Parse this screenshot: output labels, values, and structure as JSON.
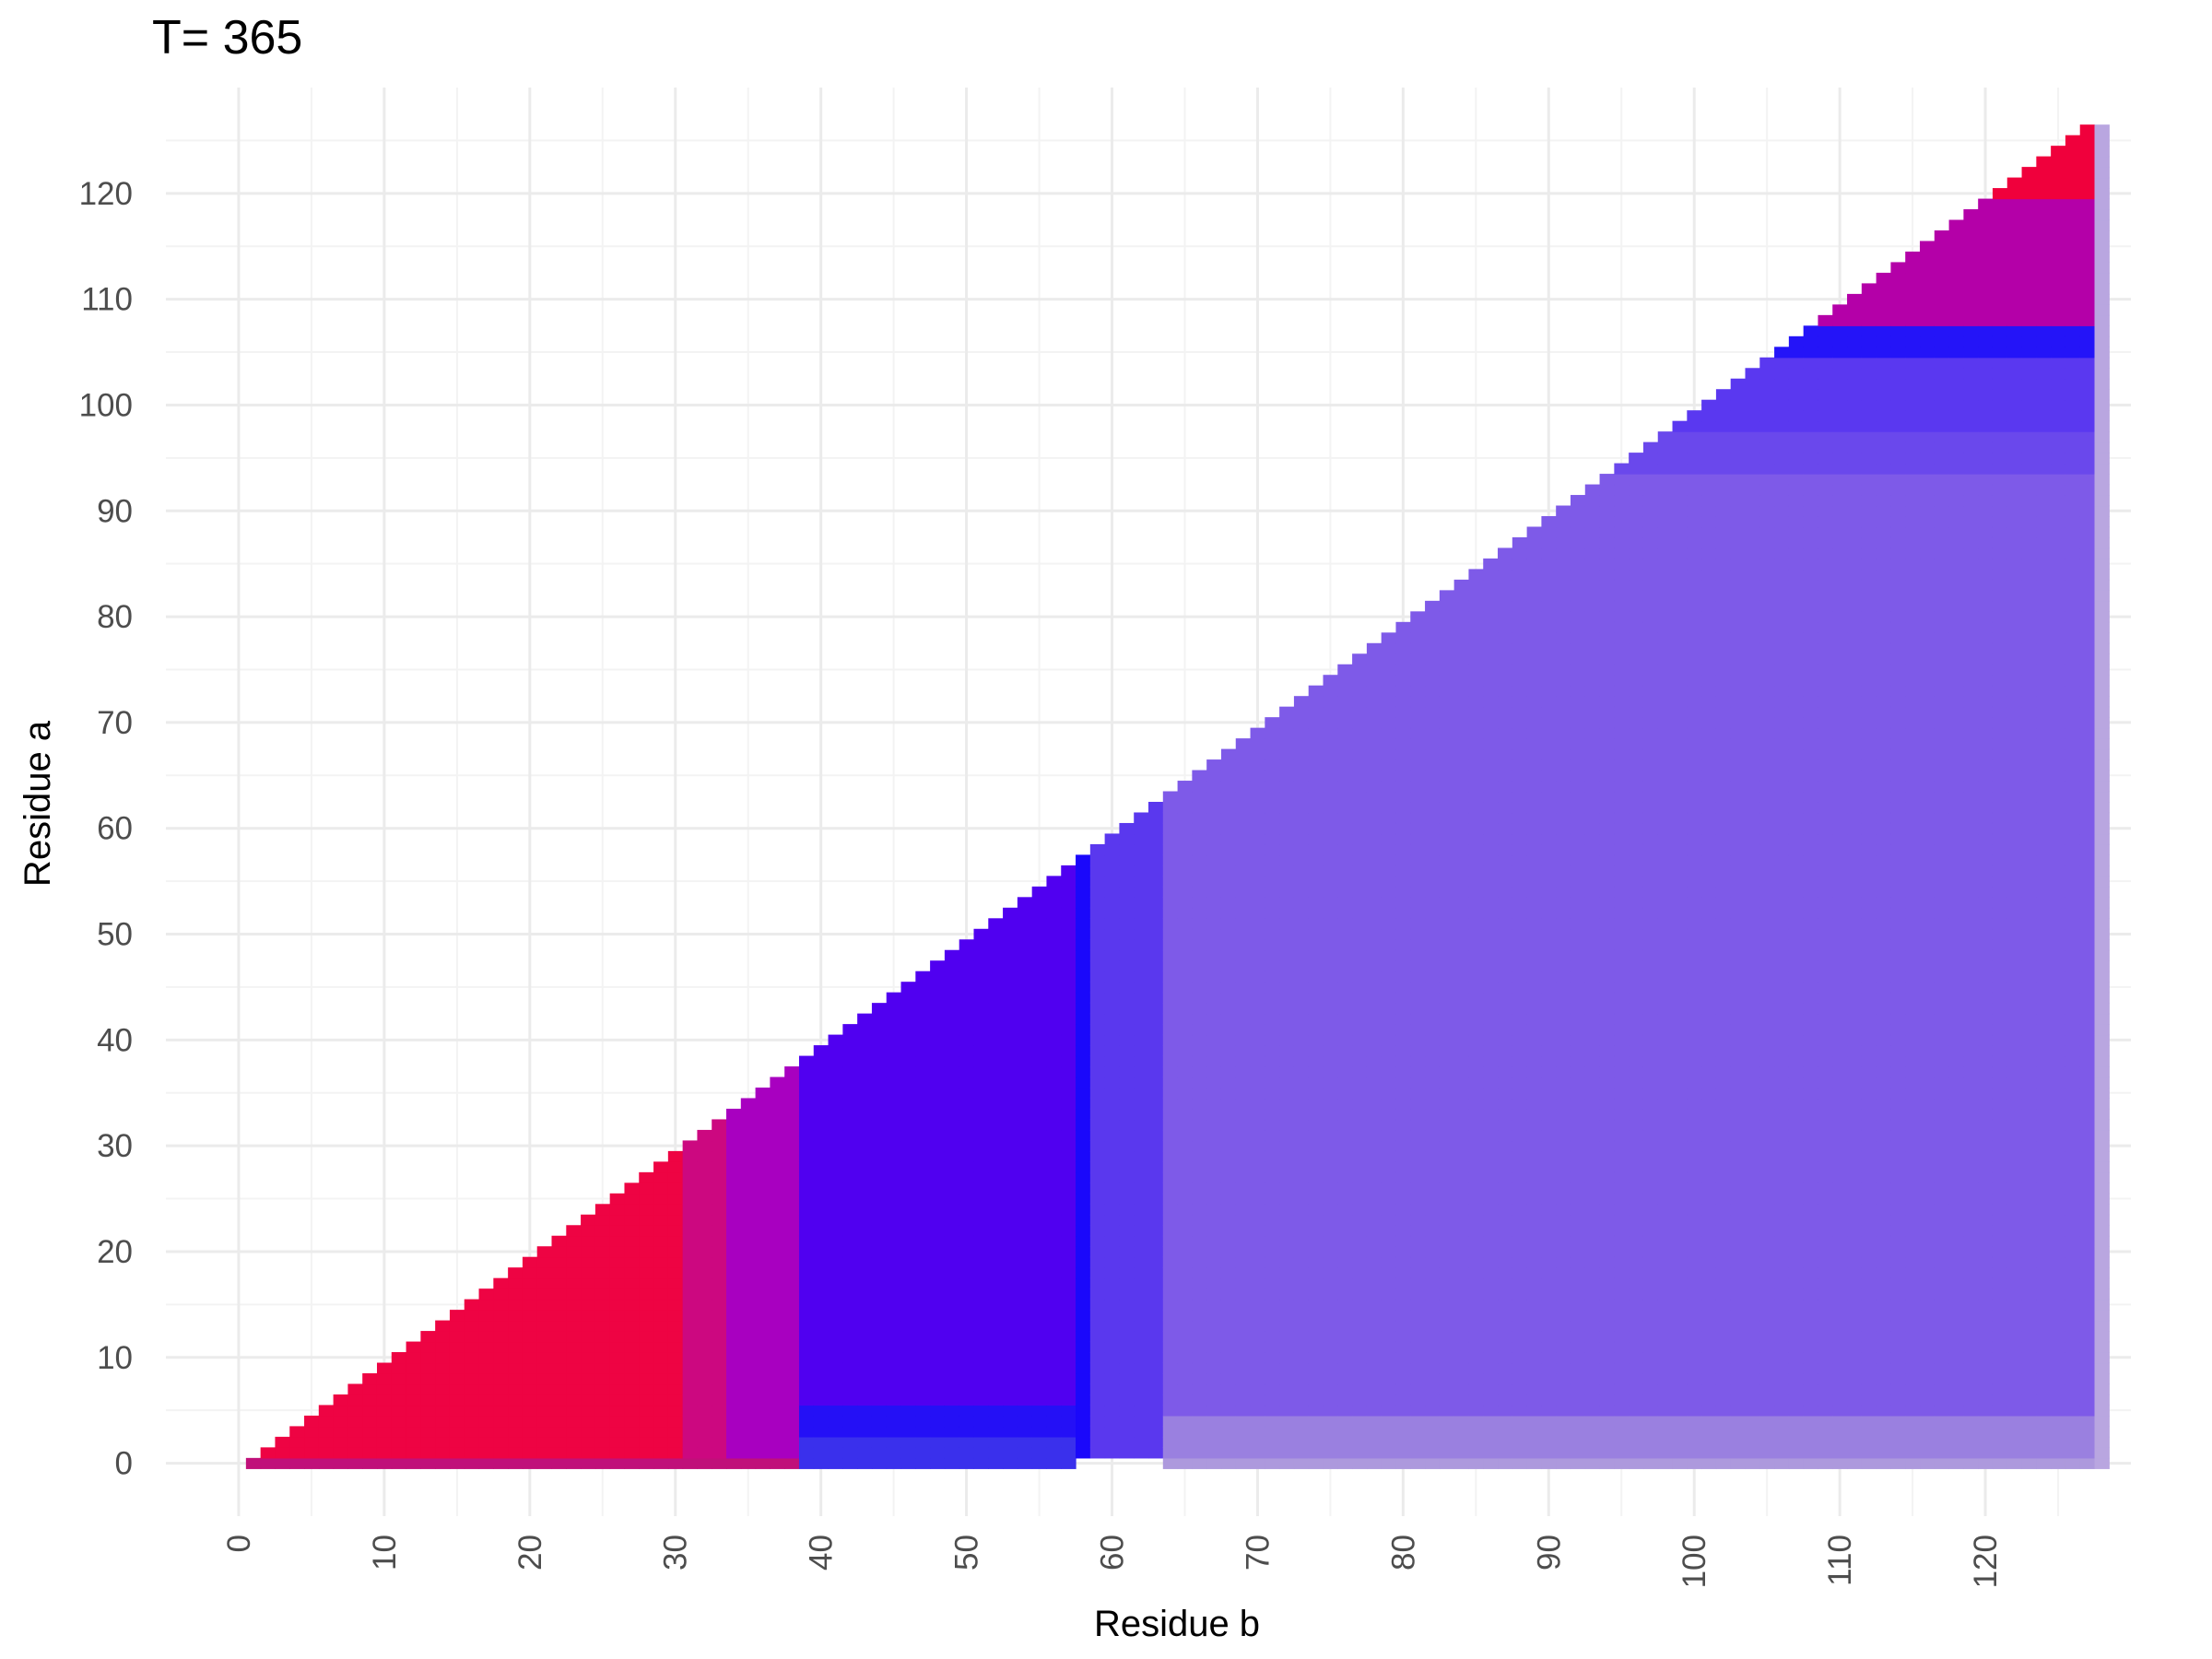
{
  "chart_data": {
    "type": "heatmap",
    "title": "T= 365",
    "xlabel": "Residue b",
    "ylabel": "Residue a",
    "xlim": [
      -5,
      130
    ],
    "ylim": [
      -5,
      130
    ],
    "x_ticks": [
      0,
      10,
      20,
      30,
      40,
      50,
      60,
      70,
      80,
      90,
      100,
      110,
      120
    ],
    "y_ticks": [
      0,
      10,
      20,
      30,
      40,
      50,
      60,
      70,
      80,
      90,
      100,
      110,
      120
    ],
    "grid": true,
    "legend": "none",
    "domain": {
      "a": [
        0,
        126
      ],
      "b": [
        1,
        128
      ],
      "rule": "a < b (upper triangle)"
    },
    "color_rules": [
      {
        "b": [
          1,
          30
        ],
        "a": [
          1,
          126
        ],
        "color": "#ee0343"
      },
      {
        "b": [
          31,
          33
        ],
        "a": [
          1,
          126
        ],
        "color": "#cc0880"
      },
      {
        "b": [
          34,
          38
        ],
        "a": [
          1,
          126
        ],
        "color": "#a800c0"
      },
      {
        "b": [
          39,
          57
        ],
        "a": [
          6,
          126
        ],
        "color": "#5000f0"
      },
      {
        "b": [
          39,
          57
        ],
        "a": [
          3,
          5
        ],
        "color": "#2410f6"
      },
      {
        "b": [
          39,
          57
        ],
        "a": [
          0,
          2
        ],
        "color": "#3a30ec"
      },
      {
        "b": [
          58,
          58
        ],
        "a": [
          1,
          126
        ],
        "color": "#1a08fb"
      },
      {
        "b": [
          59,
          63
        ],
        "a": [
          1,
          126
        ],
        "color": "#5a38ee"
      },
      {
        "b": [
          64,
          127
        ],
        "a": [
          0,
          93
        ],
        "color": "#7e5ae8"
      },
      {
        "b": [
          95,
          127
        ],
        "a": [
          94,
          97
        ],
        "color": "#6a48ec"
      },
      {
        "b": [
          98,
          127
        ],
        "a": [
          98,
          104
        ],
        "color": "#5a38f0"
      },
      {
        "b": [
          106,
          127
        ],
        "a": [
          105,
          107
        ],
        "color": "#2414f8"
      },
      {
        "b": [
          109,
          127
        ],
        "a": [
          108,
          119
        ],
        "color": "#b400a8"
      },
      {
        "b": [
          120,
          127
        ],
        "a": [
          120,
          126
        ],
        "color": "#f0003c"
      },
      {
        "b": [
          128,
          128
        ],
        "a": [
          0,
          126
        ],
        "color": "#b9a6e0"
      },
      {
        "b": [
          1,
          38
        ],
        "a": [
          0,
          0
        ],
        "color": "#c0107a"
      },
      {
        "b": [
          64,
          127
        ],
        "a": [
          1,
          4
        ],
        "color": "#9a80e0"
      },
      {
        "b": [
          64,
          127
        ],
        "a": [
          0,
          0
        ],
        "color": "#ad99dd"
      }
    ]
  }
}
